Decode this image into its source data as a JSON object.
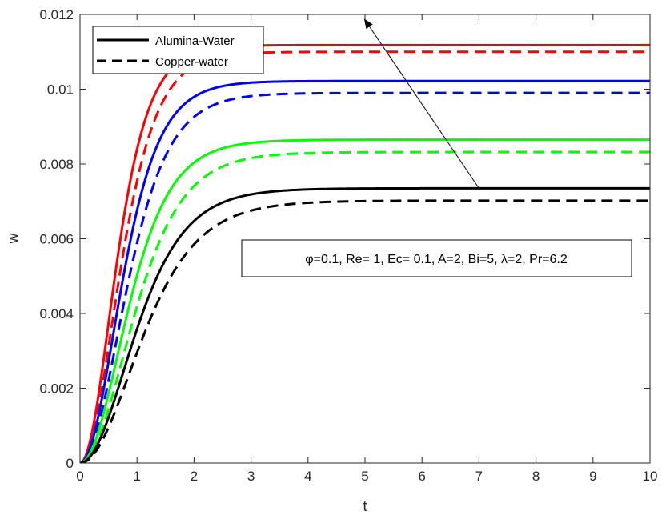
{
  "chart_data": {
    "type": "line",
    "xlabel": "t",
    "ylabel": "w",
    "xlim": [
      0,
      10
    ],
    "ylim": [
      0,
      0.012
    ],
    "xticks": [
      0,
      1,
      2,
      3,
      4,
      5,
      6,
      7,
      8,
      9,
      10
    ],
    "yticks": [
      0,
      0.002,
      0.004,
      0.006,
      0.008,
      0.01,
      0.012
    ],
    "ytick_labels": [
      "0",
      "0.002",
      "0.004",
      "0.006",
      "0.008",
      "0.01",
      "0.012"
    ],
    "grid": false,
    "legend_position": "top-left",
    "legend": [
      {
        "label": "Alumina-Water",
        "style": "solid"
      },
      {
        "label": "Copper-water",
        "style": "dashed"
      }
    ],
    "annotation": {
      "text": "φ=0.1, Re= 1, Ec= 0.1, A=2, Bi=5, λ=2, Pr=6.2",
      "arrow": {
        "from": [
          7.0,
          0.00735
        ],
        "to": [
          5.0,
          0.01185
        ]
      }
    },
    "series": [
      {
        "color": "#ff0000",
        "style": "solid",
        "plateau": 0.01118,
        "rate": 2.9
      },
      {
        "color": "#ff0000",
        "style": "dashed",
        "plateau": 0.011,
        "rate": 2.6
      },
      {
        "color": "#0000ff",
        "style": "solid",
        "plateau": 0.01022,
        "rate": 2.5
      },
      {
        "color": "#0000ff",
        "style": "dashed",
        "plateau": 0.0099,
        "rate": 2.25
      },
      {
        "color": "#00ff00",
        "style": "solid",
        "plateau": 0.00865,
        "rate": 2.2
      },
      {
        "color": "#00ff00",
        "style": "dashed",
        "plateau": 0.00832,
        "rate": 1.95
      },
      {
        "color": "#000000",
        "style": "solid",
        "plateau": 0.00735,
        "rate": 1.9
      },
      {
        "color": "#000000",
        "style": "dashed",
        "plateau": 0.00702,
        "rate": 1.7
      }
    ]
  }
}
